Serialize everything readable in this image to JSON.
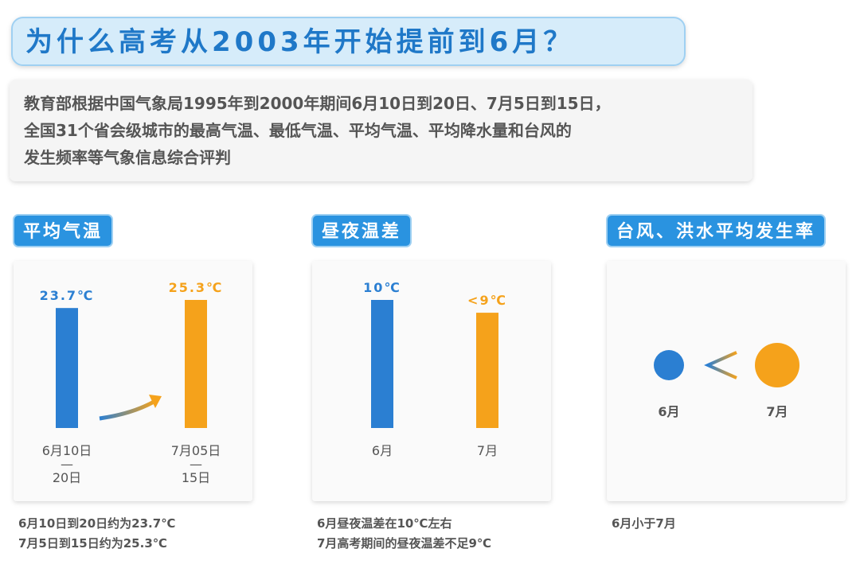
{
  "title": "为什么高考从2003年开始提前到6月？",
  "intro": [
    "教育部根据中国气象局1995年到2000年期间6月10日到20日、7月5日到15日，",
    "全国31个省会级城市的最高气温、最低气温、平均气温、平均降水量和台风的",
    "发生频率等气象信息综合评判"
  ],
  "chart_data": [
    {
      "type": "bar",
      "title": "平均气温",
      "categories": [
        "6月10日\n—\n20日",
        "7月05日\n—\n15日"
      ],
      "values": [
        23.7,
        25.3
      ],
      "value_labels": [
        "23.7℃",
        "25.3℃"
      ],
      "colors": [
        "#2b7fd2",
        "#f5a21b"
      ],
      "notes": [
        "6月10日到20日约为23.7℃",
        "7月5日到15日约为25.3℃"
      ]
    },
    {
      "type": "bar",
      "title": "昼夜温差",
      "categories": [
        "6月",
        "7月"
      ],
      "values": [
        10,
        9
      ],
      "value_labels": [
        "10℃",
        "<9℃"
      ],
      "colors": [
        "#2b7fd2",
        "#f5a21b"
      ],
      "notes": [
        "6月昼夜温差在10℃左右",
        "7月高考期间的昼夜温差不足9℃"
      ]
    },
    {
      "type": "circle-compare",
      "title": "台风、洪水平均发生率",
      "categories": [
        "6月",
        "7月"
      ],
      "colors": [
        "#2b7fd2",
        "#f5a21b"
      ],
      "notes": [
        "6月小于7月"
      ]
    }
  ]
}
